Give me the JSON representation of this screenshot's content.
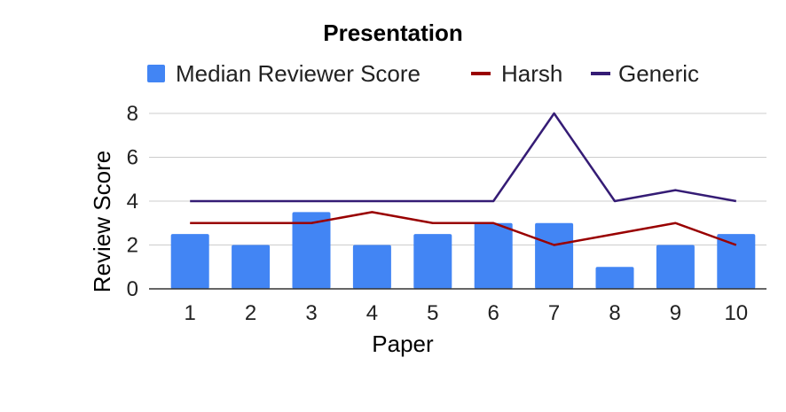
{
  "chart_data": {
    "type": "bar",
    "title": "Presentation",
    "xlabel": "Paper",
    "ylabel": "Review Score",
    "categories": [
      "1",
      "2",
      "3",
      "4",
      "5",
      "6",
      "7",
      "8",
      "9",
      "10"
    ],
    "ylim": [
      0,
      8
    ],
    "yticks": [
      "0",
      "2",
      "4",
      "6",
      "8"
    ],
    "grid": true,
    "legend_position": "top",
    "series": [
      {
        "name": "Median Reviewer Score",
        "kind": "bar",
        "color": "#4285f4",
        "values": [
          2.5,
          2,
          3.5,
          2,
          2.5,
          3,
          3,
          1,
          2,
          2.5
        ]
      },
      {
        "name": "Harsh",
        "kind": "line",
        "color": "#990000",
        "values": [
          3,
          3,
          3,
          3.5,
          3,
          3,
          2,
          2.5,
          3,
          2
        ]
      },
      {
        "name": "Generic",
        "kind": "line",
        "color": "#351c75",
        "values": [
          4,
          4,
          4,
          4,
          4,
          4,
          8,
          4,
          4.5,
          4
        ]
      }
    ]
  }
}
